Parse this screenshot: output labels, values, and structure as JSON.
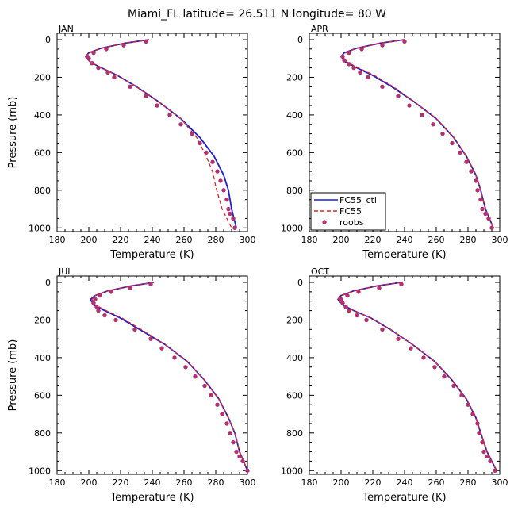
{
  "figure": {
    "title": "Miami_FL  latitude= 26.511 N longitude= 80 W"
  },
  "legend": {
    "entries": [
      {
        "name": "FC55_ctl",
        "style": "solid",
        "color": "#1f1fcc"
      },
      {
        "name": "FC55",
        "style": "dashed",
        "color": "#e32626"
      },
      {
        "name": "roobs",
        "style": "dots",
        "color": "#b0326e"
      }
    ]
  },
  "chart_data": [
    {
      "type": "line",
      "panel": "JAN",
      "xlabel": "Temperature (K)",
      "ylabel": "Pressure (mb)",
      "xlim": [
        180,
        300
      ],
      "ylim": [
        0,
        1020
      ],
      "y_inverted": true,
      "xticks": [
        180,
        200,
        220,
        240,
        260,
        280,
        300
      ],
      "yticks": [
        0,
        200,
        400,
        600,
        800,
        1000
      ],
      "series": [
        {
          "name": "FC55_ctl",
          "points": [
            [
              238,
              0
            ],
            [
              222,
              20
            ],
            [
              208,
              45
            ],
            [
              200,
              70
            ],
            [
              198,
              90
            ],
            [
              201,
              120
            ],
            [
              208,
              150
            ],
            [
              218,
              190
            ],
            [
              230,
              250
            ],
            [
              244,
              330
            ],
            [
              258,
              420
            ],
            [
              270,
              520
            ],
            [
              279,
              620
            ],
            [
              285,
              720
            ],
            [
              288,
              800
            ],
            [
              290,
              900
            ],
            [
              293,
              1000
            ]
          ]
        },
        {
          "name": "FC55",
          "points": [
            [
              238,
              0
            ],
            [
              222,
              20
            ],
            [
              208,
              45
            ],
            [
              200,
              70
            ],
            [
              198,
              90
            ],
            [
              201,
              120
            ],
            [
              208,
              150
            ],
            [
              218,
              190
            ],
            [
              230,
              250
            ],
            [
              244,
              330
            ],
            [
              258,
              420
            ],
            [
              268,
              520
            ],
            [
              274,
              620
            ],
            [
              278,
              700
            ],
            [
              280,
              780
            ],
            [
              284,
              900
            ],
            [
              290,
              1000
            ]
          ]
        },
        {
          "name": "roobs",
          "points": [
            [
              236,
              10
            ],
            [
              222,
              30
            ],
            [
              211,
              50
            ],
            [
              203,
              70
            ],
            [
              199,
              90
            ],
            [
              200,
              100
            ],
            [
              202,
              125
            ],
            [
              206,
              150
            ],
            [
              212,
              175
            ],
            [
              216,
              200
            ],
            [
              226,
              250
            ],
            [
              236,
              300
            ],
            [
              243,
              350
            ],
            [
              251,
              400
            ],
            [
              258,
              450
            ],
            [
              265,
              500
            ],
            [
              270,
              550
            ],
            [
              274,
              600
            ],
            [
              278,
              650
            ],
            [
              281,
              700
            ],
            [
              283,
              750
            ],
            [
              285,
              800
            ],
            [
              287,
              850
            ],
            [
              288,
              900
            ],
            [
              289,
              925
            ],
            [
              291,
              950
            ],
            [
              292,
              1000
            ]
          ]
        }
      ]
    },
    {
      "type": "line",
      "panel": "APR",
      "xlabel": "Temperature (K)",
      "ylabel": "",
      "xlim": [
        180,
        300
      ],
      "ylim": [
        0,
        1020
      ],
      "y_inverted": true,
      "xticks": [
        180,
        200,
        220,
        240,
        260,
        280,
        300
      ],
      "yticks": [
        0,
        200,
        400,
        600,
        800,
        1000
      ],
      "series": [
        {
          "name": "FC55_ctl",
          "points": [
            [
              240,
              0
            ],
            [
              224,
              20
            ],
            [
              210,
              45
            ],
            [
              202,
              70
            ],
            [
              200,
              90
            ],
            [
              203,
              120
            ],
            [
              210,
              150
            ],
            [
              220,
              190
            ],
            [
              232,
              250
            ],
            [
              246,
              330
            ],
            [
              260,
              420
            ],
            [
              271,
              520
            ],
            [
              279,
              620
            ],
            [
              285,
              720
            ],
            [
              288,
              800
            ],
            [
              291,
              900
            ],
            [
              296,
              1000
            ]
          ]
        },
        {
          "name": "FC55",
          "points": [
            [
              240,
              0
            ],
            [
              224,
              20
            ],
            [
              210,
              45
            ],
            [
              203,
              70
            ],
            [
              201,
              90
            ],
            [
              204,
              120
            ],
            [
              211,
              150
            ],
            [
              221,
              190
            ],
            [
              233,
              250
            ],
            [
              246,
              330
            ],
            [
              260,
              420
            ],
            [
              271,
              520
            ],
            [
              279,
              620
            ],
            [
              285,
              720
            ],
            [
              288,
              800
            ],
            [
              291,
              900
            ],
            [
              296,
              1000
            ]
          ]
        },
        {
          "name": "roobs",
          "points": [
            [
              240,
              10
            ],
            [
              226,
              30
            ],
            [
              213,
              50
            ],
            [
              205,
              70
            ],
            [
              201,
              90
            ],
            [
              202,
              110
            ],
            [
              205,
              130
            ],
            [
              208,
              150
            ],
            [
              212,
              175
            ],
            [
              217,
              200
            ],
            [
              226,
              250
            ],
            [
              236,
              300
            ],
            [
              243,
              350
            ],
            [
              251,
              400
            ],
            [
              258,
              450
            ],
            [
              264,
              500
            ],
            [
              270,
              550
            ],
            [
              275,
              600
            ],
            [
              279,
              650
            ],
            [
              282,
              700
            ],
            [
              285,
              750
            ],
            [
              286,
              800
            ],
            [
              288,
              850
            ],
            [
              289,
              900
            ],
            [
              291,
              925
            ],
            [
              293,
              950
            ],
            [
              295,
              1000
            ]
          ]
        }
      ]
    },
    {
      "type": "line",
      "panel": "JUL",
      "xlabel": "Temperature (K)",
      "ylabel": "Pressure (mb)",
      "xlim": [
        180,
        300
      ],
      "ylim": [
        0,
        1020
      ],
      "y_inverted": true,
      "xticks": [
        180,
        200,
        220,
        240,
        260,
        280,
        300
      ],
      "yticks": [
        0,
        200,
        400,
        600,
        800,
        1000
      ],
      "series": [
        {
          "name": "FC55_ctl",
          "points": [
            [
              241,
              0
            ],
            [
              226,
              20
            ],
            [
              212,
              45
            ],
            [
              204,
              70
            ],
            [
              201,
              90
            ],
            [
              203,
              120
            ],
            [
              210,
              150
            ],
            [
              220,
              190
            ],
            [
              232,
              250
            ],
            [
              248,
              330
            ],
            [
              262,
              420
            ],
            [
              273,
              520
            ],
            [
              282,
              620
            ],
            [
              288,
              720
            ],
            [
              292,
              800
            ],
            [
              295,
              900
            ],
            [
              300,
              1000
            ]
          ]
        },
        {
          "name": "FC55",
          "points": [
            [
              241,
              0
            ],
            [
              226,
              20
            ],
            [
              212,
              45
            ],
            [
              204,
              70
            ],
            [
              202,
              90
            ],
            [
              204,
              120
            ],
            [
              211,
              150
            ],
            [
              221,
              190
            ],
            [
              233,
              250
            ],
            [
              248,
              330
            ],
            [
              262,
              420
            ],
            [
              273,
              520
            ],
            [
              282,
              620
            ],
            [
              288,
              720
            ],
            [
              292,
              800
            ],
            [
              295,
              900
            ],
            [
              300,
              1000
            ]
          ]
        },
        {
          "name": "roobs",
          "points": [
            [
              239,
              10
            ],
            [
              226,
              30
            ],
            [
              214,
              50
            ],
            [
              207,
              70
            ],
            [
              204,
              90
            ],
            [
              203,
              110
            ],
            [
              205,
              130
            ],
            [
              206,
              150
            ],
            [
              210,
              175
            ],
            [
              217,
              200
            ],
            [
              229,
              250
            ],
            [
              239,
              300
            ],
            [
              246,
              350
            ],
            [
              254,
              400
            ],
            [
              261,
              450
            ],
            [
              267,
              500
            ],
            [
              273,
              550
            ],
            [
              277,
              600
            ],
            [
              281,
              650
            ],
            [
              284,
              700
            ],
            [
              287,
              750
            ],
            [
              289,
              800
            ],
            [
              291,
              850
            ],
            [
              293,
              900
            ],
            [
              295,
              925
            ],
            [
              297,
              950
            ],
            [
              300,
              1000
            ]
          ]
        }
      ]
    },
    {
      "type": "line",
      "panel": "OCT",
      "xlabel": "Temperature (K)",
      "ylabel": "",
      "xlim": [
        180,
        300
      ],
      "ylim": [
        0,
        1020
      ],
      "y_inverted": true,
      "xticks": [
        180,
        200,
        220,
        240,
        260,
        280,
        300
      ],
      "yticks": [
        0,
        200,
        400,
        600,
        800,
        1000
      ],
      "series": [
        {
          "name": "FC55_ctl",
          "points": [
            [
              238,
              0
            ],
            [
              222,
              20
            ],
            [
              208,
              45
            ],
            [
              200,
              70
            ],
            [
              198,
              90
            ],
            [
              201,
              120
            ],
            [
              208,
              150
            ],
            [
              219,
              190
            ],
            [
              231,
              250
            ],
            [
              245,
              330
            ],
            [
              259,
              420
            ],
            [
              270,
              520
            ],
            [
              279,
              620
            ],
            [
              285,
              720
            ],
            [
              288,
              800
            ],
            [
              292,
              900
            ],
            [
              298,
              1000
            ]
          ]
        },
        {
          "name": "FC55",
          "points": [
            [
              238,
              0
            ],
            [
              222,
              20
            ],
            [
              208,
              45
            ],
            [
              200,
              70
            ],
            [
              198,
              90
            ],
            [
              201,
              120
            ],
            [
              208,
              150
            ],
            [
              219,
              190
            ],
            [
              231,
              250
            ],
            [
              245,
              330
            ],
            [
              259,
              420
            ],
            [
              270,
              520
            ],
            [
              279,
              620
            ],
            [
              285,
              720
            ],
            [
              288,
              800
            ],
            [
              292,
              900
            ],
            [
              298,
              1000
            ]
          ]
        },
        {
          "name": "roobs",
          "points": [
            [
              238,
              10
            ],
            [
              224,
              30
            ],
            [
              211,
              50
            ],
            [
              204,
              70
            ],
            [
              200,
              90
            ],
            [
              201,
              110
            ],
            [
              203,
              130
            ],
            [
              205,
              150
            ],
            [
              210,
              175
            ],
            [
              216,
              200
            ],
            [
              226,
              250
            ],
            [
              236,
              300
            ],
            [
              244,
              350
            ],
            [
              252,
              400
            ],
            [
              259,
              450
            ],
            [
              265,
              500
            ],
            [
              271,
              550
            ],
            [
              276,
              600
            ],
            [
              280,
              650
            ],
            [
              283,
              700
            ],
            [
              286,
              750
            ],
            [
              287,
              800
            ],
            [
              289,
              850
            ],
            [
              290,
              900
            ],
            [
              292,
              925
            ],
            [
              294,
              950
            ],
            [
              297,
              1000
            ]
          ]
        }
      ]
    }
  ]
}
